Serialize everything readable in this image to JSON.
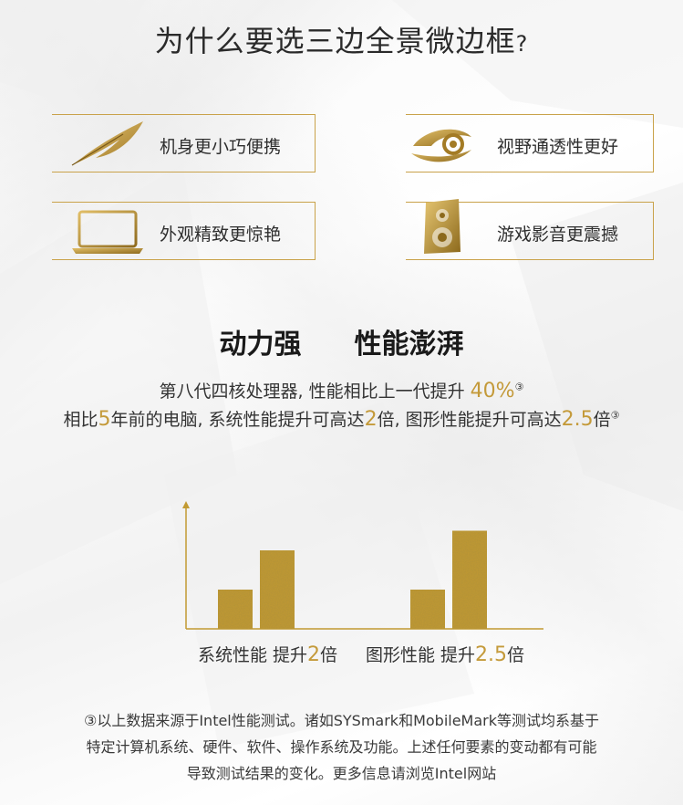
{
  "title": "为什么要选三边全景微边框",
  "title_mark": "?",
  "features": [
    {
      "label": "机身更小巧便携",
      "icon": "feather-icon"
    },
    {
      "label": "视野通透性更好",
      "icon": "eye-icon"
    },
    {
      "label": "外观精致更惊艳",
      "icon": "laptop-icon"
    },
    {
      "label": "游戏影音更震撼",
      "icon": "speaker-icon"
    }
  ],
  "subtitle": {
    "left": "动力强",
    "right": "性能澎湃"
  },
  "desc_line1": {
    "text": "第八代四核处理器, 性能相比上一代提升 ",
    "highlight": "40%",
    "note": "③"
  },
  "desc_line2": {
    "p1": "相比",
    "h1": "5",
    "p2": "年前的电脑, 系统性能提升可高达",
    "h2": "2",
    "p3": "倍, 图形性能提升可高达",
    "h3": "2.5",
    "p4": "倍",
    "note": "③"
  },
  "captions": [
    {
      "text": "系统性能 提升",
      "value": "2",
      "unit": "倍"
    },
    {
      "text": "图形性能 提升",
      "value": "2.5",
      "unit": "倍"
    }
  ],
  "footnote": {
    "line1": "③以上数据来源于Intel性能测试。诸如SYSmark和MobileMark等测试均系基于",
    "line2": "特定计算机系统、硬件、软件、操作系统及功能。上述任何要素的变动都有可能",
    "line3": "导致测试结果的变化。更多信息请浏览Intel网站"
  },
  "colors": {
    "gold": "#c9a24a",
    "bar": "#c29a32",
    "text": "#222222"
  },
  "chart_data": {
    "type": "bar",
    "categories": [
      "系统性能 提升2倍",
      "图形性能 提升2.5倍"
    ],
    "series": [
      {
        "values": [
          1,
          1
        ]
      },
      {
        "values": [
          2,
          2.5
        ]
      }
    ],
    "ylim": [
      0,
      3
    ],
    "grid": false,
    "legend": "none"
  }
}
